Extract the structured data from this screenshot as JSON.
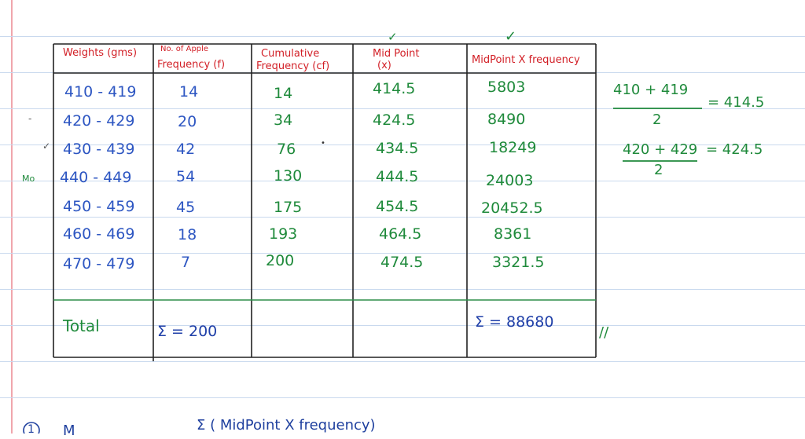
{
  "colors": {
    "header_red": "#d21f26",
    "ink_blue": "#2d56c2",
    "ink_green": "#1f8a3b",
    "ink_dark_blue": "#1f3fa8",
    "grid_black": "#222222",
    "grid_green": "#2f8d4a"
  },
  "table": {
    "headers": {
      "weights": "Weights (gms)",
      "apple_count_line1": "No. of Apple",
      "apple_count_line2": "Frequency (f)",
      "cumulative_line1": "Cumulative",
      "cumulative_line2": "Frequency (cf)",
      "midpoint_line1": "Mid Point",
      "midpoint_line2": "(x)",
      "product": "MidPoint X frequency"
    },
    "rows": [
      {
        "weights": "410 - 419",
        "frequency": "14",
        "cumulative": "14",
        "midpoint": "414.5",
        "product": "5803"
      },
      {
        "weights": "420 - 429",
        "frequency": "20",
        "cumulative": "34",
        "midpoint": "424.5",
        "product": "8490"
      },
      {
        "weights": "430 - 439",
        "frequency": "42",
        "cumulative": "76",
        "midpoint": "434.5",
        "product": "18249"
      },
      {
        "weights": "440 - 449",
        "frequency": "54",
        "cumulative": "130",
        "midpoint": "444.5",
        "product": "24003"
      },
      {
        "weights": "450 - 459",
        "frequency": "45",
        "cumulative": "175",
        "midpoint": "454.5",
        "product": "20452.5"
      },
      {
        "weights": "460 - 469",
        "frequency": "18",
        "cumulative": "193",
        "midpoint": "464.5",
        "product": "8361"
      },
      {
        "weights": "470 - 479",
        "frequency": "7",
        "cumulative": "200",
        "midpoint": "474.5",
        "product": "3321.5"
      }
    ],
    "total": {
      "label": "Total",
      "frequency_sum": "Σ = 200",
      "product_sum": "Σ = 88680"
    }
  },
  "annotations": {
    "modal_marker": "Mo",
    "check_midpoint": "✓",
    "check_product": "✓",
    "row_dash": "-",
    "row_check": "✓",
    "stray_dot": "•",
    "double_slash": "//",
    "calc1_numerator": "410 + 419",
    "calc1_denominator": "2",
    "calc1_result": "= 414.5",
    "calc2_numerator": "420 + 429",
    "calc2_denominator": "2",
    "calc2_result": "= 424.5"
  },
  "bottom": {
    "circled_number": "1",
    "mean_start": "M",
    "formula_text": "Σ ( MidPoint X frequency)"
  }
}
